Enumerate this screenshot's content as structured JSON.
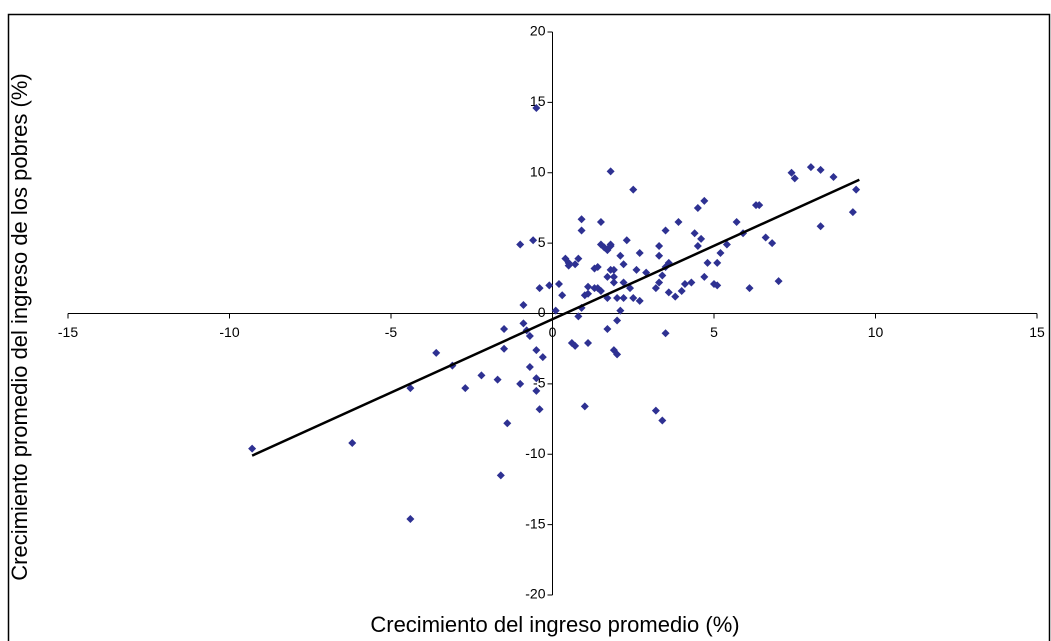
{
  "chart_data": {
    "type": "scatter",
    "x_label": "Crecimiento del ingreso promedio (%)",
    "y_label": "Crecimiento promedio del ingreso de los pobres (%)",
    "xlim": [
      -15,
      15
    ],
    "ylim": [
      -20,
      20
    ],
    "xticks": [
      -15,
      -10,
      -5,
      0,
      5,
      10,
      15
    ],
    "yticks": [
      -20,
      -15,
      -10,
      -5,
      0,
      5,
      10,
      15,
      20
    ],
    "color": "#2e3192",
    "x": [
      -9.3,
      -6.2,
      -4.4,
      -4.4,
      -3.6,
      -3.1,
      -2.7,
      -2.2,
      -1.7,
      -1.6,
      -1.4,
      -1.5,
      -1.5,
      -1.0,
      -1.0,
      -0.9,
      -0.9,
      -0.8,
      -0.7,
      -0.7,
      -0.6,
      -0.5,
      -0.5,
      -0.5,
      -0.4,
      -0.4,
      -0.3,
      -0.5,
      -0.1,
      0.1,
      0.2,
      0.4,
      0.5,
      0.3,
      0.5,
      0.7,
      0.8,
      0.8,
      0.9,
      0.9,
      0.9,
      1.0,
      1.0,
      0.7,
      0.6,
      1.1,
      1.1,
      1.1,
      1.3,
      1.3,
      1.4,
      1.4,
      1.5,
      1.5,
      1.5,
      1.6,
      1.7,
      1.7,
      1.7,
      1.7,
      1.8,
      1.8,
      1.8,
      1.8,
      1.9,
      1.9,
      1.9,
      1.9,
      2.0,
      2.0,
      2.1,
      2.0,
      2.1,
      2.2,
      2.2,
      2.2,
      2.3,
      2.4,
      2.5,
      2.5,
      2.6,
      2.7,
      2.7,
      2.9,
      3.2,
      3.2,
      3.3,
      3.3,
      3.4,
      3.3,
      3.4,
      3.5,
      3.5,
      3.5,
      3.6,
      3.6,
      3.8,
      4.0,
      3.9,
      4.1,
      4.3,
      4.4,
      4.5,
      4.5,
      4.7,
      4.6,
      4.7,
      4.8,
      5.0,
      5.1,
      5.2,
      5.1,
      5.4,
      5.7,
      5.9,
      6.1,
      6.3,
      6.4,
      6.6,
      6.8,
      7.0,
      7.4,
      7.5,
      8.0,
      8.3,
      8.3,
      8.7,
      9.3,
      9.4
    ],
    "values": [
      -9.6,
      -9.2,
      -5.3,
      -14.6,
      -2.8,
      -3.7,
      -5.3,
      -4.4,
      -4.7,
      -11.5,
      -7.8,
      -2.5,
      -1.1,
      4.9,
      -5.0,
      0.6,
      -0.7,
      -1.2,
      -3.8,
      -1.6,
      5.2,
      -5.5,
      -4.6,
      -2.6,
      1.8,
      -6.8,
      -3.1,
      14.6,
      2.0,
      0.2,
      2.1,
      3.9,
      3.6,
      1.3,
      3.4,
      3.5,
      3.9,
      -0.2,
      0.4,
      5.9,
      6.7,
      1.3,
      -6.6,
      -2.3,
      -2.1,
      -2.1,
      1.9,
      1.4,
      1.8,
      3.2,
      3.3,
      1.8,
      6.5,
      1.6,
      4.9,
      4.7,
      4.5,
      2.6,
      1.1,
      -1.1,
      10.1,
      4.9,
      3.1,
      4.8,
      2.2,
      2.6,
      -2.6,
      3.1,
      1.1,
      -0.5,
      4.1,
      -2.9,
      0.2,
      2.2,
      3.5,
      1.1,
      5.2,
      1.8,
      8.8,
      1.1,
      3.1,
      4.3,
      0.9,
      2.9,
      -6.9,
      1.8,
      2.2,
      4.8,
      -7.6,
      4.1,
      2.7,
      5.9,
      3.3,
      -1.4,
      3.6,
      1.5,
      1.2,
      1.6,
      6.5,
      2.1,
      2.2,
      5.7,
      4.8,
      7.5,
      8.0,
      5.3,
      2.6,
      3.6,
      2.1,
      3.6,
      4.3,
      2.0,
      4.9,
      6.5,
      5.7,
      1.8,
      7.7,
      7.7,
      5.4,
      5.0,
      2.3,
      10.0,
      9.6,
      10.4,
      10.2,
      6.2,
      9.7,
      7.2,
      8.8
    ],
    "trendline": {
      "x": [
        -9.3,
        9.5
      ],
      "y": [
        -10.1,
        9.5
      ],
      "color": "#000000"
    }
  }
}
